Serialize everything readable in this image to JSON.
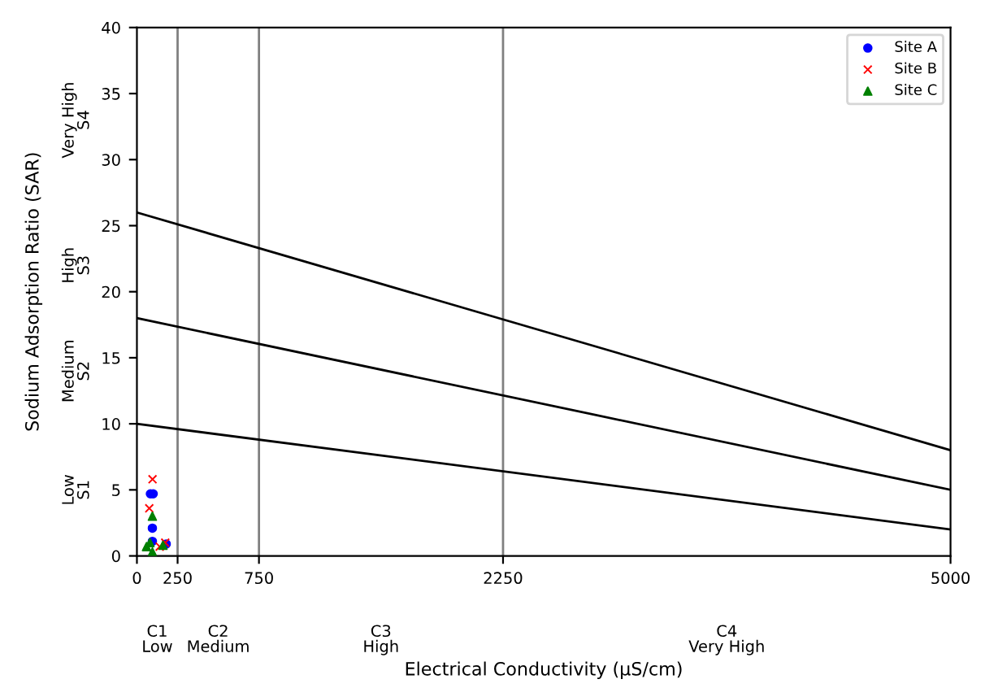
{
  "chart_data": {
    "type": "scatter",
    "xlabel": "Electrical Conductivity (μS/cm)",
    "ylabel": "Sodium Adsorption Ratio (SAR)",
    "xlim": [
      0,
      5000
    ],
    "ylim": [
      0,
      40
    ],
    "xticks": [
      0,
      250,
      750,
      2250,
      5000
    ],
    "yticks": [
      0,
      5,
      10,
      15,
      20,
      25,
      30,
      35,
      40
    ],
    "grid": false,
    "legend": "top right",
    "series": [
      {
        "name": "Site A",
        "color": "#0000ff",
        "marker": "circle",
        "x": [
          83,
          100,
          95,
          95,
          180
        ],
        "values": [
          4.7,
          4.7,
          2.1,
          1.1,
          0.9
        ]
      },
      {
        "name": "Site B",
        "color": "#ff0000",
        "marker": "cross",
        "x": [
          96,
          76,
          174,
          140
        ],
        "values": [
          5.8,
          3.6,
          1.0,
          0.7
        ]
      },
      {
        "name": "Site C",
        "color": "#008000",
        "marker": "triangle",
        "x": [
          95,
          59,
          95,
          160,
          80
        ],
        "values": [
          3.0,
          0.7,
          0.3,
          0.8,
          1.0
        ]
      },
      {
        "type": "line",
        "color": "#000000",
        "marker": "none",
        "x": [
          0,
          5000
        ],
        "values": [
          26,
          8
        ]
      },
      {
        "type": "line",
        "color": "#000000",
        "marker": "none",
        "x": [
          0,
          5000
        ],
        "values": [
          18,
          5
        ]
      },
      {
        "type": "line",
        "color": "#000000",
        "marker": "none",
        "x": [
          0,
          5000
        ],
        "values": [
          10,
          2
        ]
      }
    ],
    "ref_lines": [
      {
        "axis": "x",
        "value": 250,
        "color": "#808080"
      },
      {
        "axis": "x",
        "value": 750,
        "color": "#808080"
      },
      {
        "axis": "x",
        "value": 2250,
        "color": "#808080"
      }
    ],
    "annotations": [
      "C1\nLow",
      "C2\nMedium",
      "C3\nHigh",
      "C4\nVery High",
      "Low\nS1",
      "Medium\nS2",
      "High\nS3",
      "Very High\nS4"
    ]
  }
}
